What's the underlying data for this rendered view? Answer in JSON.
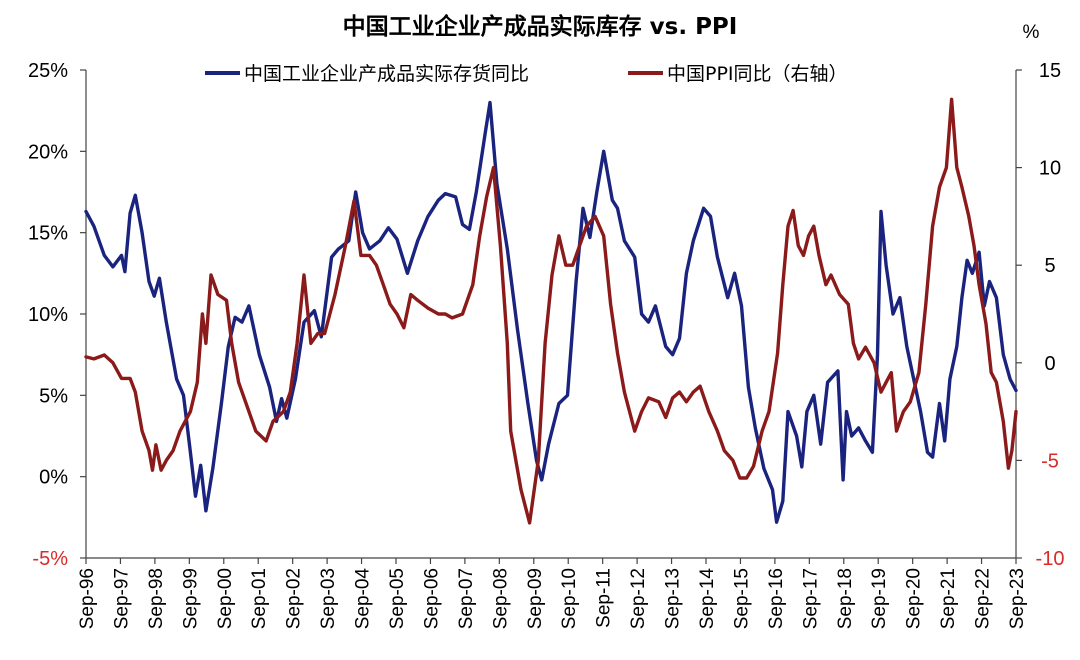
{
  "chart_data": {
    "type": "line",
    "title": "中国工业企业产成品实际库存 vs. PPI",
    "right_unit": "%",
    "x_ticks": [
      "Sep-96",
      "Sep-97",
      "Sep-98",
      "Sep-99",
      "Sep-00",
      "Sep-01",
      "Sep-02",
      "Sep-03",
      "Sep-04",
      "Sep-05",
      "Sep-06",
      "Sep-07",
      "Sep-08",
      "Sep-09",
      "Sep-10",
      "Sep-11",
      "Sep-12",
      "Sep-13",
      "Sep-14",
      "Sep-15",
      "Sep-16",
      "Sep-17",
      "Sep-18",
      "Sep-19",
      "Sep-20",
      "Sep-21",
      "Sep-22",
      "Sep-23"
    ],
    "x_range": [
      1996.67,
      2023.67
    ],
    "y_left": {
      "range": [
        -5,
        25
      ],
      "ticks": [
        "25%",
        "20%",
        "15%",
        "10%",
        "5%",
        "0%",
        "-5%"
      ],
      "values": [
        25,
        20,
        15,
        10,
        5,
        0,
        -5
      ]
    },
    "y_right": {
      "range": [
        -10,
        15
      ],
      "ticks": [
        "15",
        "10",
        "5",
        "0",
        "-5",
        "-10"
      ],
      "values": [
        15,
        10,
        5,
        0,
        -5,
        -10
      ]
    },
    "legend_position": "top",
    "grid": false,
    "series": [
      {
        "name": "中国工业企业产成品实际存货同比",
        "axis": "left",
        "color": "#1a237e",
        "points": [
          [
            1996.67,
            16.3
          ],
          [
            1996.9,
            15.4
          ],
          [
            1997.2,
            13.6
          ],
          [
            1997.45,
            12.9
          ],
          [
            1997.7,
            13.6
          ],
          [
            1997.8,
            12.6
          ],
          [
            1997.95,
            16.2
          ],
          [
            1998.1,
            17.3
          ],
          [
            1998.3,
            15
          ],
          [
            1998.5,
            12
          ],
          [
            1998.65,
            11.1
          ],
          [
            1998.8,
            12.2
          ],
          [
            1999.0,
            9.5
          ],
          [
            1999.3,
            6
          ],
          [
            1999.5,
            5
          ],
          [
            1999.7,
            1.5
          ],
          [
            1999.85,
            -1.2
          ],
          [
            2000.0,
            0.7
          ],
          [
            2000.15,
            -2.1
          ],
          [
            2000.35,
            0.5
          ],
          [
            2000.6,
            4.5
          ],
          [
            2000.8,
            8
          ],
          [
            2001.0,
            9.8
          ],
          [
            2001.2,
            9.5
          ],
          [
            2001.4,
            10.5
          ],
          [
            2001.7,
            7.5
          ],
          [
            2002.0,
            5.5
          ],
          [
            2002.2,
            3.4
          ],
          [
            2002.35,
            4.8
          ],
          [
            2002.5,
            3.6
          ],
          [
            2002.75,
            6
          ],
          [
            2003.0,
            9.5
          ],
          [
            2003.3,
            10.2
          ],
          [
            2003.5,
            8.6
          ],
          [
            2003.8,
            13.5
          ],
          [
            2004.0,
            14
          ],
          [
            2004.3,
            14.5
          ],
          [
            2004.5,
            17.5
          ],
          [
            2004.7,
            15
          ],
          [
            2004.9,
            14
          ],
          [
            2005.2,
            14.5
          ],
          [
            2005.45,
            15.3
          ],
          [
            2005.7,
            14.6
          ],
          [
            2006.0,
            12.5
          ],
          [
            2006.3,
            14.5
          ],
          [
            2006.6,
            16
          ],
          [
            2006.9,
            17
          ],
          [
            2007.1,
            17.4
          ],
          [
            2007.4,
            17.2
          ],
          [
            2007.6,
            15.5
          ],
          [
            2007.8,
            15.2
          ],
          [
            2008.0,
            17.5
          ],
          [
            2008.25,
            21
          ],
          [
            2008.4,
            23
          ],
          [
            2008.6,
            18
          ],
          [
            2008.9,
            14
          ],
          [
            2009.2,
            9
          ],
          [
            2009.5,
            4.5
          ],
          [
            2009.75,
            1
          ],
          [
            2009.9,
            -0.2
          ],
          [
            2010.1,
            2
          ],
          [
            2010.4,
            4.5
          ],
          [
            2010.65,
            5
          ],
          [
            2010.9,
            12
          ],
          [
            2011.1,
            16.5
          ],
          [
            2011.3,
            14.7
          ],
          [
            2011.5,
            17.5
          ],
          [
            2011.7,
            20
          ],
          [
            2011.95,
            17
          ],
          [
            2012.1,
            16.5
          ],
          [
            2012.3,
            14.5
          ],
          [
            2012.6,
            13.5
          ],
          [
            2012.8,
            10
          ],
          [
            2013.0,
            9.5
          ],
          [
            2013.2,
            10.5
          ],
          [
            2013.5,
            8
          ],
          [
            2013.7,
            7.5
          ],
          [
            2013.9,
            8.5
          ],
          [
            2014.1,
            12.5
          ],
          [
            2014.3,
            14.5
          ],
          [
            2014.6,
            16.5
          ],
          [
            2014.8,
            16
          ],
          [
            2015.0,
            13.5
          ],
          [
            2015.3,
            11
          ],
          [
            2015.5,
            12.5
          ],
          [
            2015.7,
            10.5
          ],
          [
            2015.9,
            5.5
          ],
          [
            2016.1,
            3
          ],
          [
            2016.35,
            0.5
          ],
          [
            2016.6,
            -0.8
          ],
          [
            2016.72,
            -2.8
          ],
          [
            2016.9,
            -1.5
          ],
          [
            2017.05,
            4
          ],
          [
            2017.3,
            2.5
          ],
          [
            2017.45,
            0.6
          ],
          [
            2017.6,
            4
          ],
          [
            2017.8,
            5
          ],
          [
            2018.0,
            2
          ],
          [
            2018.2,
            5.8
          ],
          [
            2018.5,
            6.5
          ],
          [
            2018.65,
            -0.2
          ],
          [
            2018.75,
            4
          ],
          [
            2018.9,
            2.5
          ],
          [
            2019.1,
            3
          ],
          [
            2019.3,
            2.2
          ],
          [
            2019.5,
            1.5
          ],
          [
            2019.65,
            7.5
          ],
          [
            2019.75,
            16.3
          ],
          [
            2019.9,
            13
          ],
          [
            2020.1,
            10
          ],
          [
            2020.3,
            11
          ],
          [
            2020.5,
            8
          ],
          [
            2020.7,
            6
          ],
          [
            2020.9,
            4
          ],
          [
            2021.1,
            1.5
          ],
          [
            2021.25,
            1.2
          ],
          [
            2021.45,
            4.5
          ],
          [
            2021.6,
            2.2
          ],
          [
            2021.75,
            6
          ],
          [
            2021.95,
            8
          ],
          [
            2022.1,
            11
          ],
          [
            2022.25,
            13.3
          ],
          [
            2022.4,
            12.5
          ],
          [
            2022.6,
            13.8
          ],
          [
            2022.75,
            10.5
          ],
          [
            2022.9,
            12
          ],
          [
            2023.1,
            11
          ],
          [
            2023.3,
            7.5
          ],
          [
            2023.5,
            6
          ],
          [
            2023.67,
            5.3
          ]
        ]
      },
      {
        "name": "中国PPI同比（右轴）",
        "axis": "right",
        "color": "#8b1a1a",
        "points": [
          [
            1996.67,
            0.3
          ],
          [
            1996.9,
            0.2
          ],
          [
            1997.2,
            0.4
          ],
          [
            1997.45,
            0
          ],
          [
            1997.7,
            -0.8
          ],
          [
            1997.95,
            -0.8
          ],
          [
            1998.1,
            -1.5
          ],
          [
            1998.3,
            -3.5
          ],
          [
            1998.5,
            -4.5
          ],
          [
            1998.6,
            -5.5
          ],
          [
            1998.7,
            -4.2
          ],
          [
            1998.85,
            -5.5
          ],
          [
            1999.0,
            -5
          ],
          [
            1999.2,
            -4.5
          ],
          [
            1999.4,
            -3.5
          ],
          [
            1999.7,
            -2.5
          ],
          [
            1999.9,
            -1
          ],
          [
            2000.05,
            2.5
          ],
          [
            2000.15,
            1
          ],
          [
            2000.3,
            4.5
          ],
          [
            2000.5,
            3.5
          ],
          [
            2000.75,
            3.2
          ],
          [
            2000.9,
            1
          ],
          [
            2001.1,
            -1
          ],
          [
            2001.3,
            -2
          ],
          [
            2001.6,
            -3.5
          ],
          [
            2001.9,
            -4
          ],
          [
            2002.1,
            -3
          ],
          [
            2002.4,
            -2.5
          ],
          [
            2002.6,
            -1.5
          ],
          [
            2002.8,
            1
          ],
          [
            2003.0,
            4.5
          ],
          [
            2003.2,
            1
          ],
          [
            2003.4,
            1.5
          ],
          [
            2003.6,
            1.5
          ],
          [
            2003.9,
            3.5
          ],
          [
            2004.2,
            6
          ],
          [
            2004.45,
            8.3
          ],
          [
            2004.65,
            5.5
          ],
          [
            2004.9,
            5.5
          ],
          [
            2005.1,
            5
          ],
          [
            2005.3,
            4
          ],
          [
            2005.5,
            3
          ],
          [
            2005.7,
            2.5
          ],
          [
            2005.9,
            1.8
          ],
          [
            2006.1,
            3.5
          ],
          [
            2006.3,
            3.2
          ],
          [
            2006.6,
            2.8
          ],
          [
            2006.9,
            2.5
          ],
          [
            2007.1,
            2.5
          ],
          [
            2007.3,
            2.3
          ],
          [
            2007.6,
            2.5
          ],
          [
            2007.9,
            4
          ],
          [
            2008.1,
            6.5
          ],
          [
            2008.3,
            8.5
          ],
          [
            2008.5,
            10
          ],
          [
            2008.7,
            6
          ],
          [
            2008.9,
            1
          ],
          [
            2009.0,
            -3.5
          ],
          [
            2009.3,
            -6.5
          ],
          [
            2009.55,
            -8.2
          ],
          [
            2009.8,
            -5
          ],
          [
            2010.0,
            1
          ],
          [
            2010.2,
            4.5
          ],
          [
            2010.4,
            6.5
          ],
          [
            2010.6,
            5
          ],
          [
            2010.8,
            5
          ],
          [
            2011.0,
            6
          ],
          [
            2011.2,
            7
          ],
          [
            2011.45,
            7.5
          ],
          [
            2011.7,
            6.5
          ],
          [
            2011.9,
            3
          ],
          [
            2012.1,
            0.5
          ],
          [
            2012.3,
            -1.5
          ],
          [
            2012.6,
            -3.5
          ],
          [
            2012.8,
            -2.5
          ],
          [
            2013.0,
            -1.8
          ],
          [
            2013.3,
            -2
          ],
          [
            2013.5,
            -2.8
          ],
          [
            2013.7,
            -1.8
          ],
          [
            2013.9,
            -1.5
          ],
          [
            2014.1,
            -2
          ],
          [
            2014.3,
            -1.5
          ],
          [
            2014.5,
            -1.2
          ],
          [
            2014.75,
            -2.5
          ],
          [
            2015.0,
            -3.5
          ],
          [
            2015.2,
            -4.5
          ],
          [
            2015.45,
            -5
          ],
          [
            2015.65,
            -5.9
          ],
          [
            2015.85,
            -5.9
          ],
          [
            2016.05,
            -5.3
          ],
          [
            2016.3,
            -3.5
          ],
          [
            2016.5,
            -2.5
          ],
          [
            2016.75,
            0.5
          ],
          [
            2016.9,
            4
          ],
          [
            2017.05,
            7
          ],
          [
            2017.2,
            7.8
          ],
          [
            2017.35,
            6
          ],
          [
            2017.5,
            5.5
          ],
          [
            2017.65,
            6.5
          ],
          [
            2017.8,
            7
          ],
          [
            2017.95,
            5.5
          ],
          [
            2018.15,
            4
          ],
          [
            2018.3,
            4.5
          ],
          [
            2018.55,
            3.5
          ],
          [
            2018.8,
            3
          ],
          [
            2018.95,
            1
          ],
          [
            2019.1,
            0.2
          ],
          [
            2019.3,
            0.8
          ],
          [
            2019.55,
            0
          ],
          [
            2019.75,
            -1.5
          ],
          [
            2019.9,
            -1
          ],
          [
            2020.05,
            -0.5
          ],
          [
            2020.2,
            -3.5
          ],
          [
            2020.4,
            -2.5
          ],
          [
            2020.6,
            -2
          ],
          [
            2020.85,
            -0.5
          ],
          [
            2021.05,
            3
          ],
          [
            2021.25,
            7
          ],
          [
            2021.45,
            9
          ],
          [
            2021.65,
            10
          ],
          [
            2021.8,
            13.5
          ],
          [
            2021.95,
            10
          ],
          [
            2022.1,
            9
          ],
          [
            2022.3,
            7.5
          ],
          [
            2022.45,
            6
          ],
          [
            2022.6,
            4
          ],
          [
            2022.8,
            2
          ],
          [
            2022.95,
            -0.5
          ],
          [
            2023.1,
            -1
          ],
          [
            2023.3,
            -3
          ],
          [
            2023.45,
            -5.4
          ],
          [
            2023.55,
            -4.5
          ],
          [
            2023.67,
            -2.5
          ]
        ]
      }
    ]
  }
}
